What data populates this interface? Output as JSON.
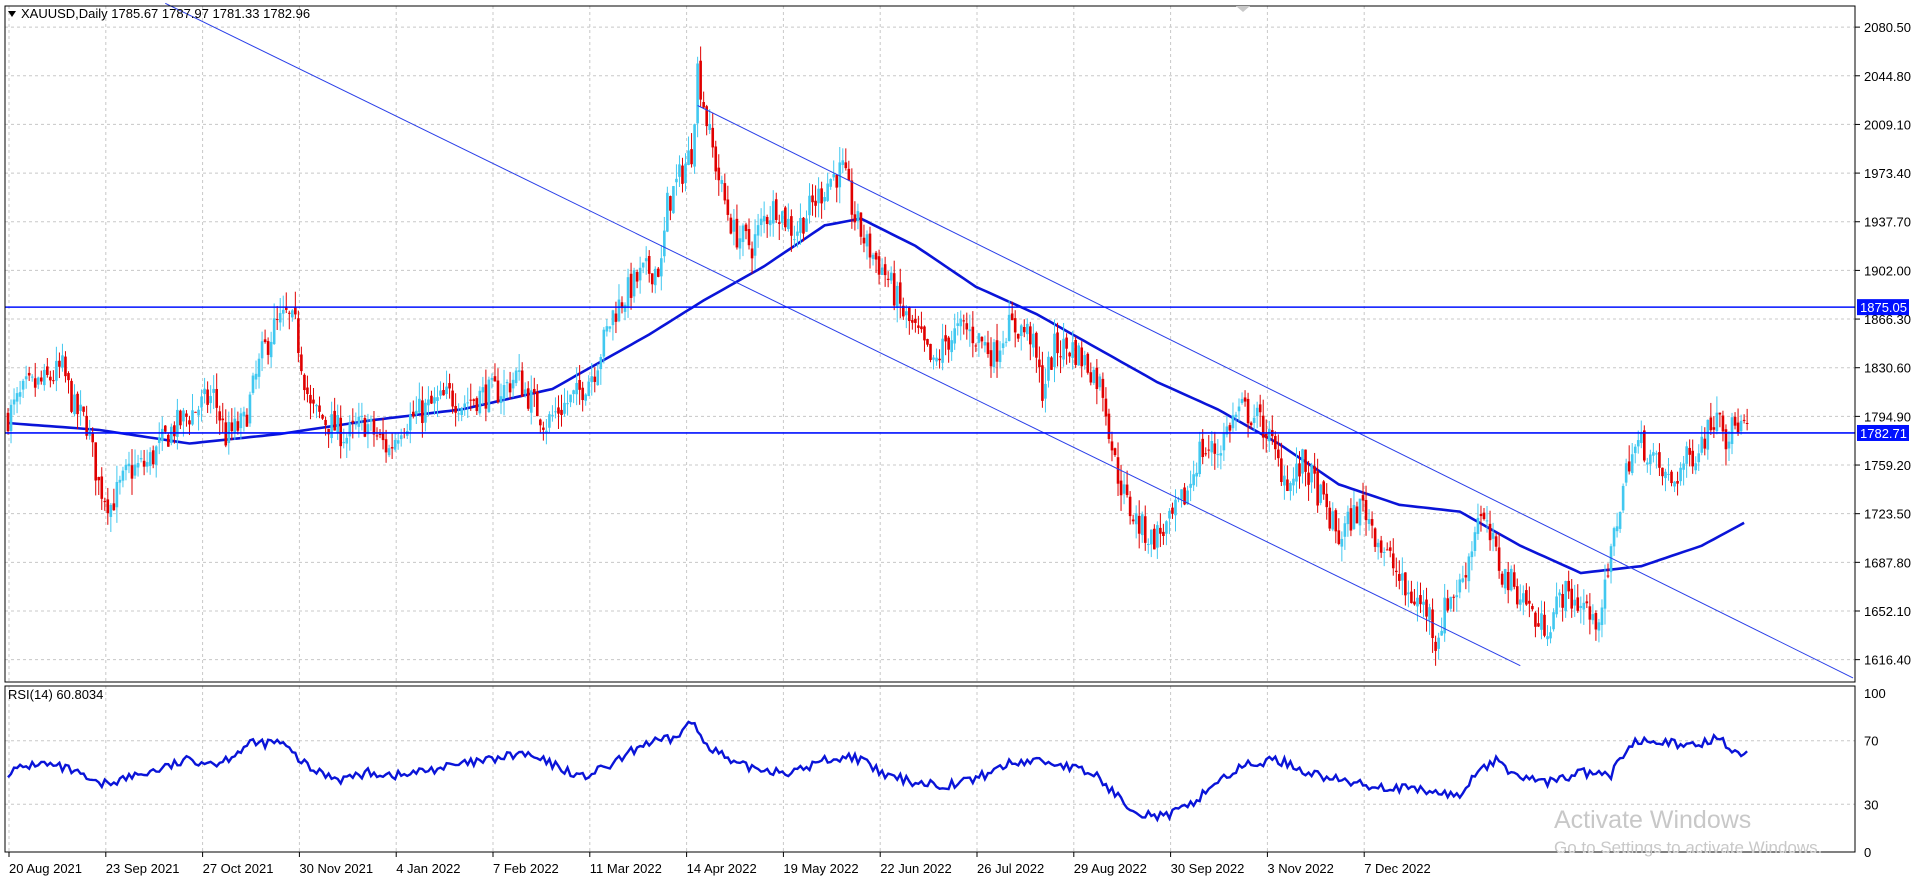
{
  "header": {
    "symbol_line": "XAUUSD,Daily  1785.67 1787.97 1781.33 1782.96"
  },
  "rsi_panel": {
    "label": "RSI(14) 60.8034",
    "levels": [
      "100",
      "70",
      "30",
      "0"
    ],
    "line_color": "#0a14d8"
  },
  "watermark": {
    "title": "Activate Windows",
    "subtitle": "Go to Settings to activate Windows."
  },
  "colors": {
    "bull": "#41c8f0",
    "bear": "#e00000",
    "ma": "#0a14d8",
    "hline": "#0010ff",
    "trend": "#2a3fe8",
    "grid": "#c8c8c8"
  },
  "chart_data": {
    "type": "candlestick",
    "symbol": "XAUUSD",
    "timeframe": "Daily",
    "ohlc_last": {
      "open": 1785.67,
      "high": 1787.97,
      "low": 1781.33,
      "close": 1782.96
    },
    "ylim": [
      1600,
      2096
    ],
    "y_ticks": [
      "2080.50",
      "2044.80",
      "2009.10",
      "1973.40",
      "1937.70",
      "1902.00",
      "1866.30",
      "1830.60",
      "1794.90",
      "1759.20",
      "1723.50",
      "1687.80",
      "1652.10",
      "1616.40"
    ],
    "x_ticks": [
      "20 Aug 2021",
      "23 Sep 2021",
      "27 Oct 2021",
      "30 Nov 2021",
      "4 Jan 2022",
      "7 Feb 2022",
      "11 Mar 2022",
      "14 Apr 2022",
      "19 May 2022",
      "22 Jun 2022",
      "26 Jul 2022",
      "29 Aug 2022",
      "30 Sep 2022",
      "3 Nov 2022",
      "7 Dec 2022"
    ],
    "horizontal_lines": [
      {
        "price": 1875.05,
        "label": "1875.05"
      },
      {
        "price": 1782.71,
        "label": "1782.71"
      }
    ],
    "price_path": [
      [
        0,
        1795
      ],
      [
        6,
        1815
      ],
      [
        12,
        1820
      ],
      [
        18,
        1830
      ],
      [
        22,
        1800
      ],
      [
        26,
        1790
      ],
      [
        30,
        1745
      ],
      [
        34,
        1730
      ],
      [
        40,
        1755
      ],
      [
        46,
        1760
      ],
      [
        54,
        1785
      ],
      [
        62,
        1800
      ],
      [
        68,
        1810
      ],
      [
        72,
        1780
      ],
      [
        78,
        1790
      ],
      [
        84,
        1840
      ],
      [
        88,
        1860
      ],
      [
        92,
        1868
      ],
      [
        95,
        1860
      ],
      [
        100,
        1800
      ],
      [
        106,
        1790
      ],
      [
        112,
        1780
      ],
      [
        118,
        1790
      ],
      [
        122,
        1780
      ],
      [
        126,
        1770
      ],
      [
        130,
        1790
      ],
      [
        138,
        1800
      ],
      [
        146,
        1810
      ],
      [
        150,
        1805
      ],
      [
        156,
        1810
      ],
      [
        164,
        1815
      ],
      [
        168,
        1825
      ],
      [
        172,
        1810
      ],
      [
        178,
        1790
      ],
      [
        182,
        1800
      ],
      [
        188,
        1810
      ],
      [
        194,
        1830
      ],
      [
        200,
        1870
      ],
      [
        206,
        1890
      ],
      [
        210,
        1900
      ],
      [
        216,
        1905
      ],
      [
        218,
        1950
      ],
      [
        222,
        1970
      ],
      [
        226,
        1990
      ],
      [
        228,
        2050
      ],
      [
        232,
        2000
      ],
      [
        236,
        1960
      ],
      [
        240,
        1930
      ],
      [
        246,
        1920
      ],
      [
        250,
        1940
      ],
      [
        254,
        1950
      ],
      [
        260,
        1930
      ],
      [
        266,
        1950
      ],
      [
        272,
        1970
      ],
      [
        276,
        1975
      ],
      [
        280,
        1940
      ],
      [
        284,
        1920
      ],
      [
        290,
        1900
      ],
      [
        296,
        1870
      ],
      [
        302,
        1850
      ],
      [
        306,
        1830
      ],
      [
        310,
        1850
      ],
      [
        316,
        1860
      ],
      [
        322,
        1850
      ],
      [
        326,
        1840
      ],
      [
        330,
        1860
      ],
      [
        334,
        1860
      ],
      [
        338,
        1855
      ],
      [
        342,
        1815
      ],
      [
        346,
        1845
      ],
      [
        352,
        1845
      ],
      [
        358,
        1830
      ],
      [
        362,
        1815
      ],
      [
        366,
        1760
      ],
      [
        370,
        1730
      ],
      [
        374,
        1715
      ],
      [
        378,
        1705
      ],
      [
        384,
        1715
      ],
      [
        390,
        1740
      ],
      [
        394,
        1770
      ],
      [
        400,
        1770
      ],
      [
        404,
        1790
      ],
      [
        408,
        1800
      ],
      [
        412,
        1795
      ],
      [
        416,
        1785
      ],
      [
        420,
        1760
      ],
      [
        424,
        1745
      ],
      [
        428,
        1760
      ],
      [
        432,
        1745
      ],
      [
        436,
        1725
      ],
      [
        440,
        1705
      ],
      [
        444,
        1720
      ],
      [
        448,
        1730
      ],
      [
        450,
        1720
      ],
      [
        454,
        1700
      ],
      [
        458,
        1685
      ],
      [
        462,
        1665
      ],
      [
        466,
        1660
      ],
      [
        470,
        1650
      ],
      [
        472,
        1630
      ],
      [
        476,
        1660
      ],
      [
        480,
        1670
      ],
      [
        484,
        1700
      ],
      [
        486,
        1725
      ],
      [
        490,
        1705
      ],
      [
        494,
        1680
      ],
      [
        498,
        1670
      ],
      [
        502,
        1660
      ],
      [
        506,
        1640
      ],
      [
        510,
        1645
      ],
      [
        514,
        1665
      ],
      [
        518,
        1660
      ],
      [
        522,
        1655
      ],
      [
        524,
        1640
      ],
      [
        528,
        1665
      ],
      [
        532,
        1720
      ],
      [
        536,
        1765
      ],
      [
        540,
        1775
      ],
      [
        542,
        1770
      ],
      [
        546,
        1755
      ],
      [
        550,
        1745
      ],
      [
        554,
        1760
      ],
      [
        558,
        1770
      ],
      [
        562,
        1785
      ],
      [
        566,
        1805
      ],
      [
        568,
        1780
      ],
      [
        572,
        1790
      ],
      [
        575,
        1783
      ]
    ],
    "moving_average": [
      [
        0,
        1790
      ],
      [
        30,
        1785
      ],
      [
        60,
        1775
      ],
      [
        90,
        1782
      ],
      [
        120,
        1792
      ],
      [
        150,
        1800
      ],
      [
        180,
        1815
      ],
      [
        200,
        1840
      ],
      [
        212,
        1855
      ],
      [
        230,
        1880
      ],
      [
        250,
        1905
      ],
      [
        270,
        1935
      ],
      [
        282,
        1940
      ],
      [
        300,
        1920
      ],
      [
        320,
        1890
      ],
      [
        340,
        1870
      ],
      [
        360,
        1845
      ],
      [
        380,
        1820
      ],
      [
        400,
        1800
      ],
      [
        420,
        1775
      ],
      [
        440,
        1745
      ],
      [
        460,
        1730
      ],
      [
        480,
        1725
      ],
      [
        500,
        1700
      ],
      [
        520,
        1680
      ],
      [
        540,
        1685
      ],
      [
        560,
        1700
      ],
      [
        575,
        1718
      ]
    ],
    "trendlines": [
      {
        "from": [
          52,
          2098
        ],
        "to": [
          500,
          1612
        ]
      },
      {
        "from": [
          228,
          2023
        ],
        "to": [
          610,
          1603
        ]
      }
    ],
    "rsi": {
      "ylim": [
        0,
        100
      ],
      "levels": [
        30,
        70
      ],
      "points": [
        [
          0,
          50
        ],
        [
          10,
          56
        ],
        [
          20,
          52
        ],
        [
          30,
          42
        ],
        [
          40,
          47
        ],
        [
          50,
          52
        ],
        [
          60,
          58
        ],
        [
          70,
          56
        ],
        [
          80,
          68
        ],
        [
          90,
          69
        ],
        [
          100,
          52
        ],
        [
          110,
          46
        ],
        [
          120,
          50
        ],
        [
          130,
          48
        ],
        [
          140,
          52
        ],
        [
          150,
          55
        ],
        [
          160,
          58
        ],
        [
          170,
          62
        ],
        [
          180,
          55
        ],
        [
          190,
          47
        ],
        [
          200,
          55
        ],
        [
          210,
          68
        ],
        [
          220,
          71
        ],
        [
          226,
          82
        ],
        [
          230,
          70
        ],
        [
          240,
          55
        ],
        [
          250,
          52
        ],
        [
          260,
          50
        ],
        [
          270,
          58
        ],
        [
          280,
          60
        ],
        [
          290,
          48
        ],
        [
          300,
          44
        ],
        [
          310,
          42
        ],
        [
          320,
          46
        ],
        [
          330,
          55
        ],
        [
          340,
          58
        ],
        [
          350,
          54
        ],
        [
          360,
          48
        ],
        [
          366,
          36
        ],
        [
          374,
          25
        ],
        [
          382,
          22
        ],
        [
          390,
          28
        ],
        [
          400,
          45
        ],
        [
          410,
          55
        ],
        [
          420,
          58
        ],
        [
          430,
          50
        ],
        [
          440,
          45
        ],
        [
          450,
          42
        ],
        [
          460,
          40
        ],
        [
          470,
          38
        ],
        [
          480,
          35
        ],
        [
          486,
          52
        ],
        [
          492,
          57
        ],
        [
          500,
          47
        ],
        [
          510,
          44
        ],
        [
          520,
          50
        ],
        [
          530,
          48
        ],
        [
          536,
          68
        ],
        [
          542,
          72
        ],
        [
          548,
          70
        ],
        [
          554,
          65
        ],
        [
          562,
          70
        ],
        [
          566,
          72
        ],
        [
          570,
          65
        ],
        [
          575,
          60.8
        ]
      ]
    }
  }
}
